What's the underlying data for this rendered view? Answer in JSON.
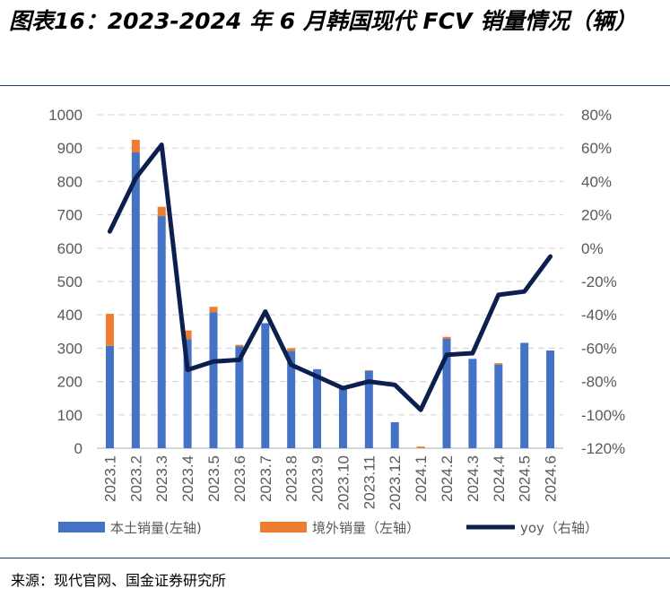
{
  "title": "图表16：2023-2024 年 6 月韩国现代 FCV 销量情况（辆）",
  "source": "来源：现代官网、国金证券研究所",
  "colors": {
    "domestic": "#4472C4",
    "overseas": "#ED7D31",
    "yoy": "#0D1F4F",
    "grid": "#D9D9D9",
    "text": "#595959",
    "rule": "#1F3B73"
  },
  "chart_data": {
    "type": "bar",
    "stacked": true,
    "categories": [
      "2023.1",
      "2023.2",
      "2023.3",
      "2023.4",
      "2023.5",
      "2023.6",
      "2023.7",
      "2023.8",
      "2023.9",
      "2023.10",
      "2023.11",
      "2023.12",
      "2024.1",
      "2024.2",
      "2024.3",
      "2024.4",
      "2024.5",
      "2024.6"
    ],
    "series": [
      {
        "name": "本土销量(左轴)",
        "type": "bar",
        "axis": "left",
        "values": [
          307,
          887,
          696,
          327,
          408,
          306,
          375,
          292,
          237,
          180,
          232,
          78,
          0,
          328,
          268,
          251,
          316,
          293
        ]
      },
      {
        "name": "境外销量（左轴）",
        "type": "bar",
        "axis": "left",
        "values": [
          96,
          38,
          28,
          26,
          16,
          4,
          0,
          8,
          0,
          0,
          2,
          0,
          5,
          6,
          0,
          4,
          0,
          0
        ]
      },
      {
        "name": "yoy（右轴）",
        "type": "line",
        "axis": "right",
        "unit": "%",
        "values": [
          10,
          42,
          62,
          -73,
          -68,
          -67,
          -38,
          -70,
          -77,
          -84,
          -80,
          -82,
          -97,
          -64,
          -63,
          -28,
          -26,
          -5
        ]
      }
    ],
    "ylim_left": [
      0,
      1000
    ],
    "yticks_left": [
      "0",
      "100",
      "200",
      "300",
      "400",
      "500",
      "600",
      "700",
      "800",
      "900",
      "1000"
    ],
    "ylim_right": [
      -120,
      80
    ],
    "yticks_right": [
      "-120%",
      "-100%",
      "-80%",
      "-60%",
      "-40%",
      "-20%",
      "0%",
      "20%",
      "40%",
      "60%",
      "80%"
    ],
    "grid": true,
    "legend_position": "bottom"
  }
}
